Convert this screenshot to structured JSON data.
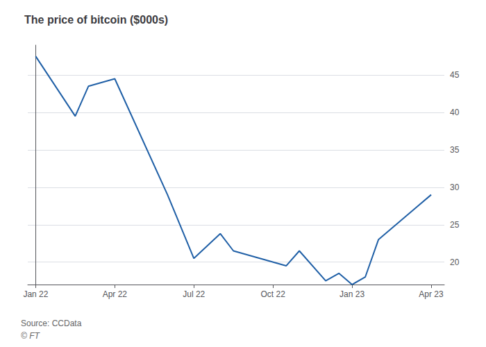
{
  "chart_data": {
    "type": "line",
    "title": "The price of bitcoin ($000s)",
    "annotations": [
      "Source: CCData",
      "© FT"
    ],
    "x": [
      0.0,
      1.5,
      2.0,
      3.0,
      5.0,
      6.0,
      7.0,
      7.5,
      8.5,
      9.5,
      10.0,
      11.0,
      11.5,
      12.0,
      12.5,
      13.0,
      14.5,
      15.0
    ],
    "values": [
      47.5,
      39.5,
      43.5,
      44.5,
      29.0,
      20.5,
      23.8,
      21.5,
      20.5,
      19.5,
      21.5,
      17.5,
      18.5,
      17.0,
      18.0,
      23.0,
      27.5,
      29.0
    ],
    "color": "#1f5fa6",
    "xlim": [
      -0.3,
      15.5
    ],
    "xticks": [
      {
        "value": 0,
        "label": "Jan 22"
      },
      {
        "value": 3,
        "label": "Apr 22"
      },
      {
        "value": 6,
        "label": "Jul 22"
      },
      {
        "value": 9,
        "label": "Oct 22"
      },
      {
        "value": 12,
        "label": "Jan 23"
      },
      {
        "value": 15,
        "label": "Apr 23"
      }
    ],
    "ylim": [
      17,
      49
    ],
    "yticks": [
      20,
      25,
      30,
      35,
      40,
      45
    ],
    "grid": true
  }
}
